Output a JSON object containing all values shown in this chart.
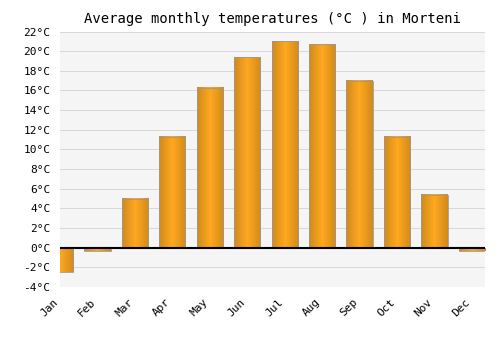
{
  "title": "Average monthly temperatures (°C ) in Morteni",
  "months": [
    "Jan",
    "Feb",
    "Mar",
    "Apr",
    "May",
    "Jun",
    "Jul",
    "Aug",
    "Sep",
    "Oct",
    "Nov",
    "Dec"
  ],
  "temperatures": [
    -2.5,
    -0.3,
    5.0,
    11.3,
    16.3,
    19.4,
    21.0,
    20.7,
    17.0,
    11.3,
    5.4,
    -0.3
  ],
  "bar_color": "#FFA820",
  "bar_edge_color": "#999999",
  "background_color": "#ffffff",
  "grid_color": "#d8d8d8",
  "plot_bg_color": "#f5f5f5",
  "ylim": [
    -4,
    22
  ],
  "yticks": [
    -4,
    -2,
    0,
    2,
    4,
    6,
    8,
    10,
    12,
    14,
    16,
    18,
    20,
    22
  ],
  "title_fontsize": 10,
  "tick_fontsize": 8
}
